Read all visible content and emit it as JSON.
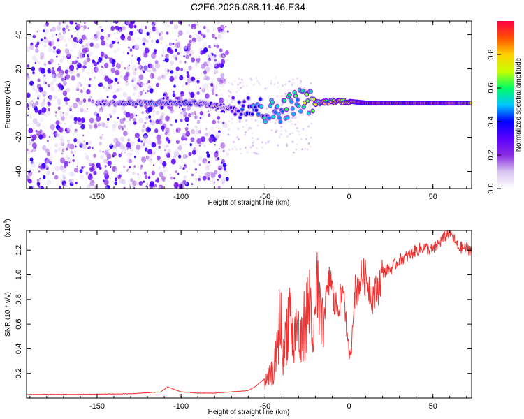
{
  "chart_data": [
    {
      "type": "heatmap",
      "title": "C2E6.2026.088.11.46.E34",
      "xlabel": "Height of straight line (km)",
      "ylabel": "Frequency (Hz)",
      "xlim": [
        -192,
        73
      ],
      "ylim": [
        -50,
        48
      ],
      "xticks": [
        -150,
        -100,
        -50,
        0,
        50
      ],
      "yticks": [
        -40,
        -20,
        0,
        20,
        40
      ],
      "colorbar": {
        "label": "Normalized spectral amplitude",
        "range": [
          0,
          1
        ],
        "ticks": [
          "0.0",
          "0.2",
          "0.4",
          "0.6",
          "0.8"
        ],
        "colormap": [
          "#ffffff",
          "#d8c4f0",
          "#8a2be2",
          "#5a00ff",
          "#0000ff",
          "#00c8ff",
          "#00ff60",
          "#c8ff00",
          "#ffd000",
          "#ff5000",
          "#ff0048"
        ]
      },
      "main_band": [
        {
          "x": -150,
          "freq": 0,
          "amp": 0.35
        },
        {
          "x": -120,
          "freq": 0,
          "amp": 0.4
        },
        {
          "x": -90,
          "freq": 0,
          "amp": 0.38
        },
        {
          "x": -70,
          "freq": -3,
          "amp": 0.3
        },
        {
          "x": -60,
          "freq": 0,
          "amp": 0.45
        },
        {
          "x": -50,
          "freq": -5,
          "amp": 0.5
        },
        {
          "x": -40,
          "freq": -4,
          "amp": 0.55
        },
        {
          "x": -30,
          "freq": 2,
          "amp": 0.6
        },
        {
          "x": -20,
          "freq": 0,
          "amp": 0.7
        },
        {
          "x": -10,
          "freq": 1,
          "amp": 0.75
        },
        {
          "x": 0,
          "freq": 1,
          "amp": 0.85
        },
        {
          "x": 10,
          "freq": 0,
          "amp": 0.95
        },
        {
          "x": 30,
          "freq": 0,
          "amp": 0.95
        },
        {
          "x": 50,
          "freq": 0,
          "amp": 0.95
        },
        {
          "x": 73,
          "freq": 0,
          "amp": 0.9
        }
      ]
    },
    {
      "type": "line",
      "xlabel": "Height of straight line (km)",
      "ylabel": "SNR (10 * v/v)",
      "y_multiplier": "(x10",
      "y_multiplier_exp": "4",
      "y_multiplier_close": ")",
      "xlim": [
        -192,
        73
      ],
      "ylim": [
        0,
        1.36
      ],
      "xticks": [
        -150,
        -100,
        -50,
        0,
        50
      ],
      "yticks": [
        "0.2",
        "0.4",
        "0.6",
        "0.8",
        "1.0",
        "1.2"
      ],
      "color": "#ee3333",
      "series": [
        {
          "x": [
            -192,
            -160,
            -130,
            -112,
            -108,
            -100,
            -90,
            -80,
            -70,
            -60,
            -55,
            -50,
            -47,
            -45,
            -43,
            -41,
            -39,
            -37,
            -35,
            -33,
            -31,
            -29,
            -27,
            -25,
            -23,
            -21,
            -19,
            -17,
            -15,
            -13,
            -11,
            -9,
            -7,
            -5,
            -3,
            -1,
            1,
            3,
            5,
            8,
            11,
            14,
            17,
            20,
            25,
            30,
            35,
            40,
            45,
            50,
            55,
            60,
            65,
            70,
            73
          ],
          "y": [
            0.03,
            0.03,
            0.035,
            0.05,
            0.09,
            0.05,
            0.04,
            0.04,
            0.05,
            0.06,
            0.1,
            0.16,
            0.25,
            0.3,
            0.5,
            0.95,
            0.45,
            0.8,
            1.0,
            0.55,
            0.9,
            0.55,
            0.8,
            0.95,
            1.08,
            0.6,
            1.22,
            0.8,
            0.7,
            0.85,
            1.0,
            0.75,
            0.75,
            0.8,
            0.9,
            0.45,
            0.3,
            0.85,
            0.9,
            1.0,
            0.95,
            0.82,
            0.88,
            1.02,
            1.05,
            1.12,
            1.15,
            1.2,
            1.22,
            1.2,
            1.28,
            1.35,
            1.22,
            1.22,
            1.2
          ]
        }
      ]
    }
  ]
}
